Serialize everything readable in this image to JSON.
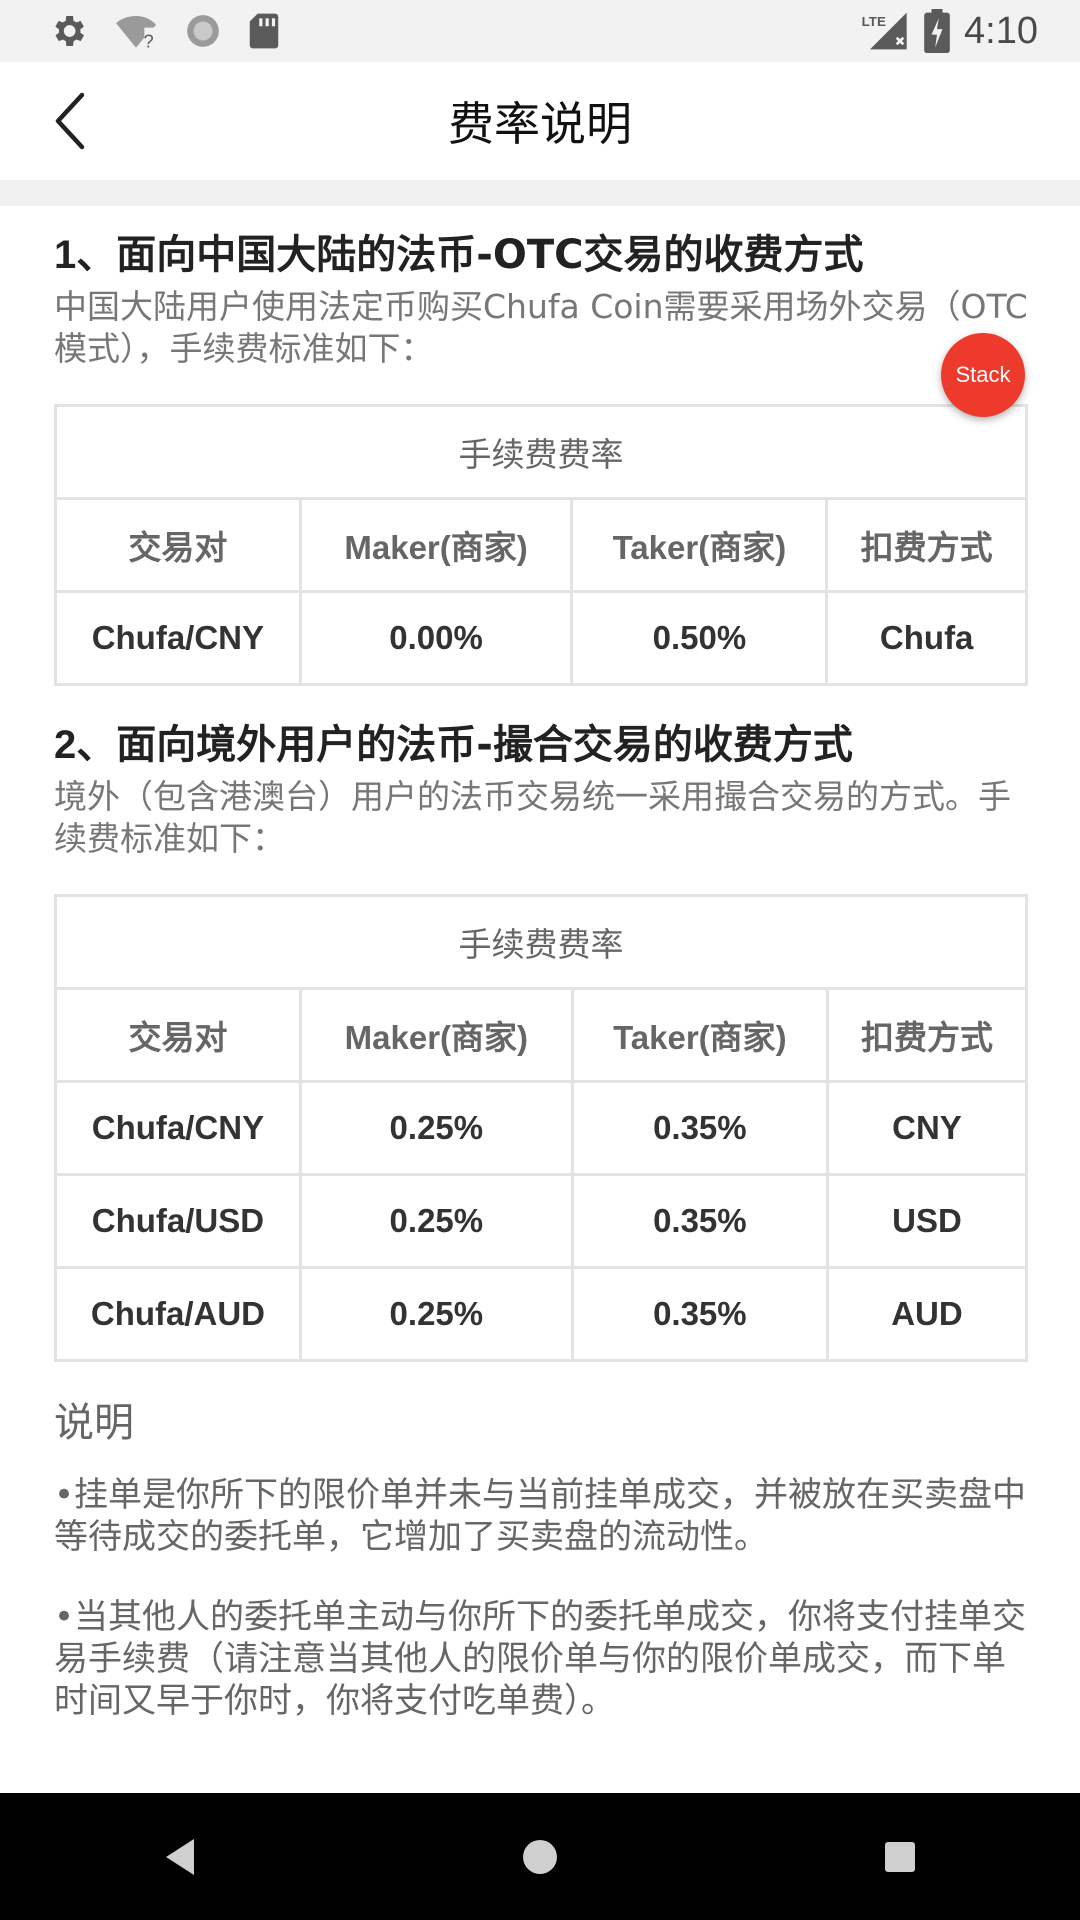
{
  "status_bar": {
    "time": "4:10",
    "lte_label": "LTE",
    "icons_left": [
      "settings-icon",
      "wifi-unknown-icon",
      "sync-icon",
      "sd-card-icon"
    ],
    "icons_right": [
      "lte-signal-icon",
      "battery-charging-icon"
    ]
  },
  "app_bar": {
    "title": "费率说明",
    "back_icon": "chevron-left-icon"
  },
  "section1": {
    "title_num": "1、",
    "title_text": "面向中国大陆的法币-OTC交易的收费方式",
    "desc": "中国大陆用户使用法定币购买Chufa Coin需要采用场外交易（OTC模式），手续费标准如下：",
    "table": {
      "caption": "手续费费率",
      "headers": [
        "交易对",
        "Maker(商家)",
        "Taker(商家)",
        "扣费方式"
      ],
      "rows": [
        [
          "Chufa/CNY",
          "0.00%",
          "0.50%",
          "Chufa"
        ]
      ]
    }
  },
  "section2": {
    "title_num": "2、",
    "title_text": "面向境外用户的法币-撮合交易的收费方式",
    "desc": "境外（包含港澳台）用户的法币交易统一采用撮合交易的方式。手续费标准如下：",
    "table": {
      "caption": "手续费费率",
      "headers": [
        "交易对",
        "Maker(商家)",
        "Taker(商家)",
        "扣费方式"
      ],
      "rows": [
        [
          "Chufa/CNY",
          "0.25%",
          "0.35%",
          "CNY"
        ],
        [
          "Chufa/USD",
          "0.25%",
          "0.35%",
          "USD"
        ],
        [
          "Chufa/AUD",
          "0.25%",
          "0.35%",
          "AUD"
        ]
      ]
    }
  },
  "notes": {
    "title": "说明",
    "items": [
      "•挂单是你所下的限价单并未与当前挂单成交，并被放在买卖盘中等待成交的委托单，它增加了买卖盘的流动性。",
      "•当其他人的委托单主动与你所下的委托单成交，你将支付挂单交易手续费（请注意当其他人的限价单与你的限价单成交，而下单时间又早于你时，你将支付吃单费）。"
    ]
  },
  "stack_badge": {
    "label": "Stack",
    "color": "#ee3a2c"
  },
  "nav_bar": {
    "buttons": [
      "back-triangle-icon",
      "home-circle-icon",
      "recents-square-icon"
    ]
  }
}
